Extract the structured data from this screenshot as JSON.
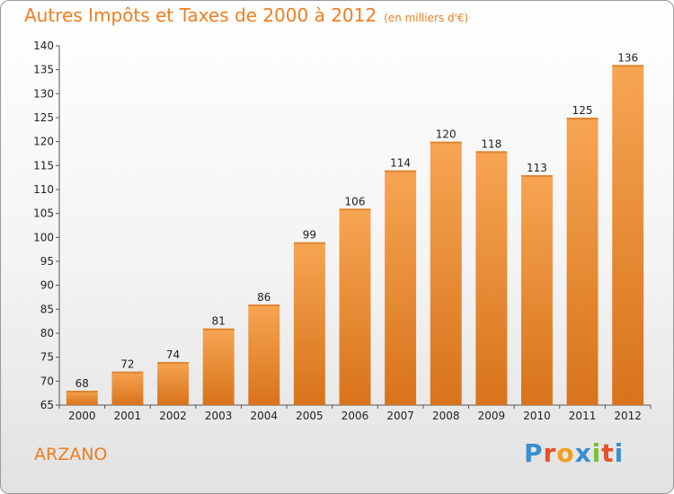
{
  "header": {
    "title": "Autres Impôts et Taxes de 2000 à 2012",
    "unit": "(en milliers d'€)"
  },
  "footer": {
    "town": "ARZANO",
    "logo_text": "Proxiti",
    "logo_colors": [
      "#3a8fd0",
      "#e84f2a",
      "#f0a020",
      "#3a8fd0",
      "#7cbf3a",
      "#e84f2a",
      "#3a8fd0"
    ]
  },
  "chart_data": {
    "type": "bar",
    "title": "Autres Impôts et Taxes de 2000 à 2012",
    "subtitle": "(en milliers d'€)",
    "categories": [
      "2000",
      "2001",
      "2002",
      "2003",
      "2004",
      "2005",
      "2006",
      "2007",
      "2008",
      "2009",
      "2010",
      "2011",
      "2012"
    ],
    "values": [
      68,
      72,
      74,
      81,
      86,
      99,
      106,
      114,
      120,
      118,
      113,
      125,
      136
    ],
    "ylim": [
      65,
      140
    ],
    "yticks": [
      65,
      70,
      75,
      80,
      85,
      90,
      95,
      100,
      105,
      110,
      115,
      120,
      125,
      130,
      135,
      140
    ],
    "xlabel": "",
    "ylabel": "",
    "grid": false,
    "bar_color": "#f08a2a"
  }
}
